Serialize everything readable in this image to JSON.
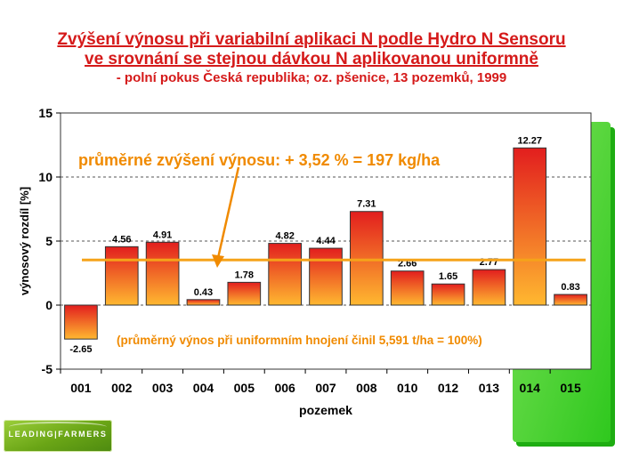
{
  "header": {
    "title_line1": "Zvýšení výnosu při variabilní aplikaci N podle Hydro N Sensoru",
    "title_line2": "ve srovnání se stejnou dávkou N aplikovanou uniformně",
    "subtitle": "- polní pokus Česká republika; oz. pšenice, 13 pozemků, 1999"
  },
  "logo": {
    "text": "LEADING|FARMERS"
  },
  "colors": {
    "title": "#d51a1a",
    "bar_top": "#e21e1e",
    "bar_bottom": "#ffb830",
    "average_line": "#f5a31a",
    "annotation": "#f08a00",
    "shadow_green": "#2fc81e"
  },
  "chart_data": {
    "type": "bar",
    "categories": [
      "001",
      "002",
      "003",
      "004",
      "005",
      "006",
      "007",
      "008",
      "010",
      "012",
      "013",
      "014",
      "015"
    ],
    "values": [
      -2.65,
      4.56,
      4.91,
      0.43,
      1.78,
      4.82,
      4.44,
      7.31,
      2.66,
      1.65,
      2.77,
      12.27,
      0.83
    ],
    "value_labels": [
      "-2.65",
      "4.56",
      "4.91",
      "0.43",
      "1.78",
      "4.82",
      "4.44",
      "7.31",
      "2.66",
      "1.65",
      "2.77",
      "12.27",
      "0.83"
    ],
    "xlabel": "pozemek",
    "ylabel": "výnosový rozdíl [%]",
    "ylim": [
      -5,
      15
    ],
    "yticks": [
      -5,
      0,
      5,
      10,
      15
    ],
    "ytick_labels": [
      "-5",
      "0",
      "5",
      "10",
      "15"
    ],
    "grid": "dashed horizontal at major ticks",
    "average_value": 3.52,
    "annotation_main": "průměrné zvýšení výnosu: + 3,52 % = 197 kg/ha",
    "annotation_note": "(průměrný výnos při uniformním hnojení činil 5,591 t/ha = 100%)"
  }
}
